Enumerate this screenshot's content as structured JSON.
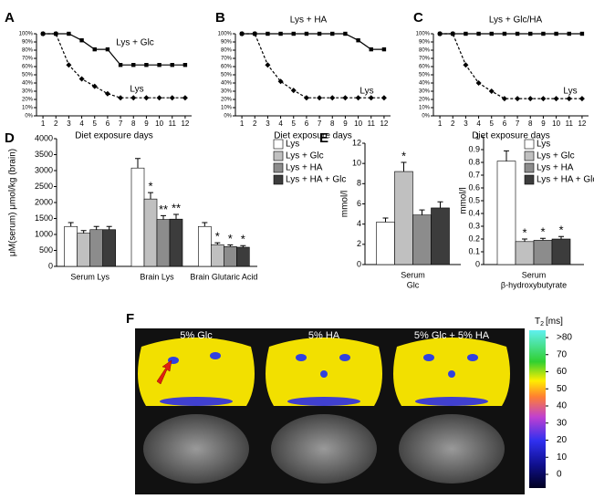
{
  "chart_data": [
    {
      "type": "line",
      "panel_label": "A",
      "x_label": "Diet exposure days",
      "x": [
        1,
        2,
        3,
        4,
        5,
        6,
        7,
        8,
        9,
        10,
        11,
        12
      ],
      "xlim": [
        0.5,
        12.5
      ],
      "xticks": [
        1,
        2,
        3,
        4,
        5,
        6,
        7,
        8,
        9,
        10,
        11,
        12
      ],
      "ylim": [
        0,
        100
      ],
      "yticks": [
        {
          "value": 0,
          "label": "0%"
        },
        {
          "value": 10,
          "label": "10%"
        },
        {
          "value": 20,
          "label": "20%"
        },
        {
          "value": 30,
          "label": "30%"
        },
        {
          "value": 40,
          "label": "40%"
        },
        {
          "value": 50,
          "label": "50%"
        },
        {
          "value": 60,
          "label": "60%"
        },
        {
          "value": 70,
          "label": "70%"
        },
        {
          "value": 80,
          "label": "80%"
        },
        {
          "value": 90,
          "label": "90%"
        },
        {
          "value": 100,
          "label": "100%"
        }
      ],
      "series": [
        {
          "name": "Lys + Glc",
          "color": "#000000",
          "style": "solid",
          "marker": "square",
          "values": [
            100,
            100,
            100,
            92,
            81,
            81,
            62,
            62,
            62,
            62,
            62,
            62
          ]
        },
        {
          "name": "Lys",
          "color": "#000000",
          "style": "dashed",
          "marker": "diamond",
          "values": [
            100,
            100,
            62,
            45,
            36,
            27,
            22,
            22,
            22,
            22,
            22,
            22
          ]
        }
      ]
    },
    {
      "type": "line",
      "panel_label": "B",
      "x_label": "Diet exposure days",
      "x": [
        1,
        2,
        3,
        4,
        5,
        6,
        7,
        8,
        9,
        10,
        11,
        12
      ],
      "xlim": [
        0.5,
        12.5
      ],
      "xticks": [
        1,
        2,
        3,
        4,
        5,
        6,
        7,
        8,
        9,
        10,
        11,
        12
      ],
      "ylim": [
        0,
        100
      ],
      "yticks": [
        {
          "value": 0,
          "label": "0%"
        },
        {
          "value": 10,
          "label": "10%"
        },
        {
          "value": 20,
          "label": "20%"
        },
        {
          "value": 30,
          "label": "30%"
        },
        {
          "value": 40,
          "label": "40%"
        },
        {
          "value": 50,
          "label": "50%"
        },
        {
          "value": 60,
          "label": "60%"
        },
        {
          "value": 70,
          "label": "70%"
        },
        {
          "value": 80,
          "label": "80%"
        },
        {
          "value": 90,
          "label": "90%"
        },
        {
          "value": 100,
          "label": "100%"
        }
      ],
      "series": [
        {
          "name": "Lys + HA",
          "color": "#000000",
          "style": "solid",
          "marker": "square",
          "values": [
            100,
            100,
            100,
            100,
            100,
            100,
            100,
            100,
            100,
            92,
            81,
            81
          ]
        },
        {
          "name": "Lys",
          "color": "#000000",
          "style": "dashed",
          "marker": "diamond",
          "values": [
            100,
            100,
            62,
            42,
            31,
            22,
            22,
            22,
            22,
            22,
            22,
            22
          ]
        }
      ]
    },
    {
      "type": "line",
      "panel_label": "C",
      "x_label": "Diet exposure days",
      "x": [
        1,
        2,
        3,
        4,
        5,
        6,
        7,
        8,
        9,
        10,
        11,
        12
      ],
      "xlim": [
        0.5,
        12.5
      ],
      "xticks": [
        1,
        2,
        3,
        4,
        5,
        6,
        7,
        8,
        9,
        10,
        11,
        12
      ],
      "ylim": [
        0,
        100
      ],
      "yticks": [
        {
          "value": 0,
          "label": "0%"
        },
        {
          "value": 10,
          "label": "10%"
        },
        {
          "value": 20,
          "label": "20%"
        },
        {
          "value": 30,
          "label": "30%"
        },
        {
          "value": 40,
          "label": "40%"
        },
        {
          "value": 50,
          "label": "50%"
        },
        {
          "value": 60,
          "label": "60%"
        },
        {
          "value": 70,
          "label": "70%"
        },
        {
          "value": 80,
          "label": "80%"
        },
        {
          "value": 90,
          "label": "90%"
        },
        {
          "value": 100,
          "label": "100%"
        }
      ],
      "series": [
        {
          "name": "Lys + Glc/HA",
          "color": "#000000",
          "style": "solid",
          "marker": "square",
          "values": [
            100,
            100,
            100,
            100,
            100,
            100,
            100,
            100,
            100,
            100,
            100,
            100
          ]
        },
        {
          "name": "Lys",
          "color": "#000000",
          "style": "dashed",
          "marker": "diamond",
          "values": [
            100,
            100,
            62,
            40,
            30,
            21,
            21,
            21,
            21,
            21,
            21,
            21
          ]
        }
      ]
    },
    {
      "type": "bar",
      "panel_label": "D",
      "y_label": "μM(serum) μmol/kg (brain)",
      "legend": true,
      "categories": [
        [
          "Serum Lys"
        ],
        [
          "Brain Lys"
        ],
        [
          "Brain Glutaric Acid"
        ]
      ],
      "ylim": [
        0,
        4000
      ],
      "yticks": [
        0,
        500,
        1000,
        1500,
        2000,
        2500,
        3000,
        3500,
        4000
      ],
      "series": [
        {
          "name": "Lys",
          "color": "#ffffff",
          "values": [
            1250,
            3080,
            1250
          ],
          "errors": [
            120,
            300,
            120
          ],
          "stars": [
            null,
            null,
            null
          ]
        },
        {
          "name": "Lys + Glc",
          "color": "#c0c0c0",
          "values": [
            1040,
            2110,
            680
          ],
          "errors": [
            80,
            200,
            60
          ],
          "stars": [
            null,
            "*",
            "*"
          ]
        },
        {
          "name": "Lys + HA",
          "color": "#8c8c8c",
          "values": [
            1150,
            1470,
            620
          ],
          "errors": [
            100,
            120,
            50
          ],
          "stars": [
            null,
            "**",
            "*"
          ]
        },
        {
          "name": "Lys + HA + Glc",
          "color": "#3c3c3c",
          "values": [
            1150,
            1480,
            600
          ],
          "errors": [
            100,
            150,
            50
          ],
          "stars": [
            null,
            "**",
            "*"
          ]
        }
      ]
    },
    {
      "type": "bar",
      "panel_label": "E",
      "y_label": "mmol/l",
      "legend": false,
      "categories": [
        [
          "Serum",
          "Glc"
        ]
      ],
      "ylim": [
        0,
        12
      ],
      "yticks": [
        0,
        2,
        4,
        6,
        8,
        10,
        12
      ],
      "series": [
        {
          "color": "#ffffff",
          "values": [
            4.2
          ],
          "errors": [
            0.4
          ],
          "stars": [
            null
          ]
        },
        {
          "color": "#c0c0c0",
          "values": [
            9.2
          ],
          "errors": [
            0.9
          ],
          "stars": [
            "*"
          ]
        },
        {
          "color": "#8c8c8c",
          "values": [
            4.9
          ],
          "errors": [
            0.5
          ],
          "stars": [
            null
          ]
        },
        {
          "color": "#3c3c3c",
          "values": [
            5.6
          ],
          "errors": [
            0.6
          ],
          "stars": [
            null
          ]
        }
      ]
    },
    {
      "type": "bar",
      "y_label": "mmol/l",
      "legend": true,
      "categories": [
        [
          "Serum",
          "β-hydroxybutyrate"
        ]
      ],
      "ylim": [
        0,
        1
      ],
      "yticks": [
        0,
        0.1,
        0.2,
        0.3,
        0.4,
        0.5,
        0.6,
        0.7,
        0.8,
        0.9,
        1
      ],
      "series": [
        {
          "name": "Lys",
          "color": "#ffffff",
          "values": [
            0.81
          ],
          "errors": [
            0.08
          ],
          "stars": [
            null
          ]
        },
        {
          "name": "Lys + Glc",
          "color": "#c0c0c0",
          "values": [
            0.18
          ],
          "errors": [
            0.02
          ],
          "stars": [
            "*"
          ]
        },
        {
          "name": "Lys + HA",
          "color": "#8c8c8c",
          "values": [
            0.19
          ],
          "errors": [
            0.015
          ],
          "stars": [
            "*"
          ]
        },
        {
          "name": "Lys + HA + Glc",
          "color": "#3c3c3c",
          "values": [
            0.2
          ],
          "errors": [
            0.02
          ],
          "stars": [
            "*"
          ]
        }
      ]
    }
  ],
  "figure_f": {
    "panel_label": "F",
    "columns": [
      "5% Glc",
      "5% HA",
      "5% Glc + 5% HA"
    ],
    "colorbar": {
      "title": "T",
      "subscript": "2",
      "unit": "[ms]",
      "lim": [
        0,
        80
      ],
      "ticks": [
        0,
        10,
        20,
        30,
        40,
        50,
        60,
        70,
        {
          "value": 80,
          "label": ">80"
        }
      ]
    }
  }
}
